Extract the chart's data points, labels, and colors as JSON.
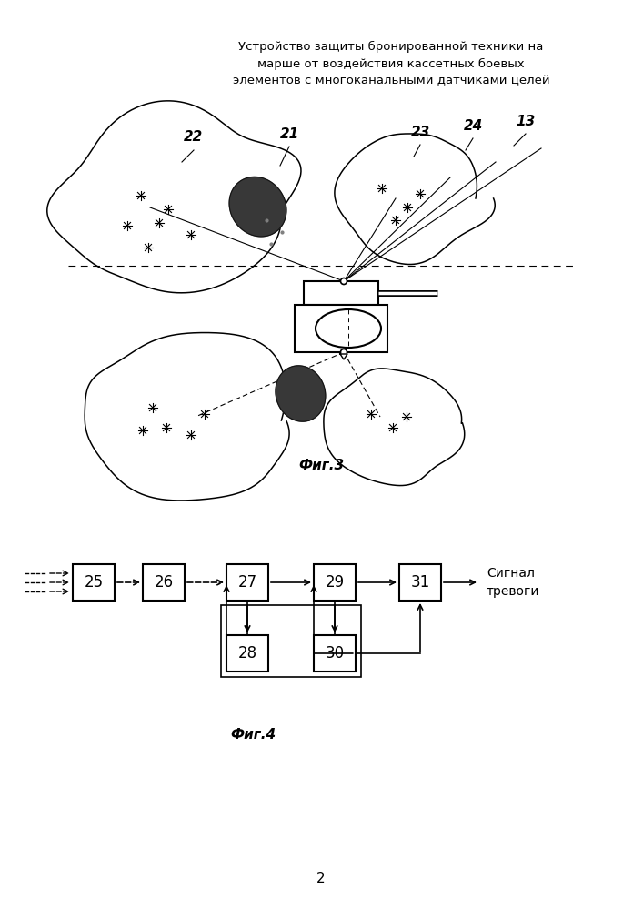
{
  "title": "Устройство защиты бронированной техники на\nмарше от воздействия кассетных боевых\nэлементов с многоканальными датчиками целей",
  "fig3_label": "Фиг.3",
  "fig4_label": "Фиг.4",
  "page_number": "2",
  "alarm_text": "Сигнал\nтревоги",
  "bg_color": "#ffffff",
  "line_color": "#000000",
  "text_color": "#000000",
  "fig3_labels": [
    "22",
    "21",
    "23",
    "24",
    "13"
  ],
  "fig4_top_blocks": [
    "25",
    "26",
    "27",
    "29",
    "31"
  ],
  "fig4_bot_blocks": [
    "28",
    "30"
  ]
}
